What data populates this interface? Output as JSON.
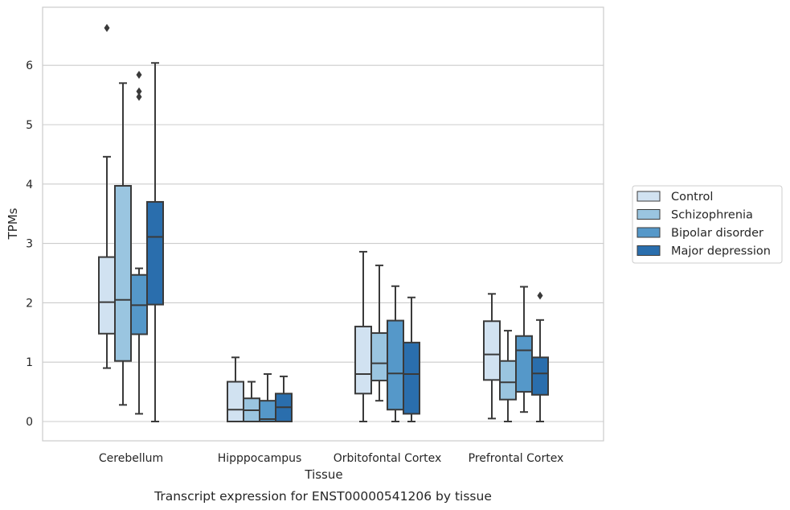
{
  "caption": "Transcript expression for ENST00000541206 by tissue",
  "chart_data": {
    "type": "box",
    "xlabel": "Tissue",
    "ylabel": "TPMs",
    "ylim": [
      -0.32,
      6.98
    ],
    "yticks": [
      0,
      1,
      2,
      3,
      4,
      5,
      6
    ],
    "grid": "horizontal",
    "legend_position": "right",
    "categories": [
      "Cerebellum",
      "Hipppocampus",
      "Orbitofontal Cortex",
      "Prefrontal Cortex"
    ],
    "series": [
      {
        "name": "Control",
        "color": "#d1e2f1",
        "boxes": [
          {
            "whislo": 0.9,
            "q1": 1.48,
            "med": 2.01,
            "q3": 2.77,
            "whishi": 4.46,
            "fliers": [
              6.63
            ]
          },
          {
            "whislo": 0.0,
            "q1": 0.0,
            "med": 0.2,
            "q3": 0.67,
            "whishi": 1.08,
            "fliers": []
          },
          {
            "whislo": 0.0,
            "q1": 0.47,
            "med": 0.8,
            "q3": 1.6,
            "whishi": 2.86,
            "fliers": []
          },
          {
            "whislo": 0.05,
            "q1": 0.7,
            "med": 1.13,
            "q3": 1.69,
            "whishi": 2.15,
            "fliers": []
          }
        ]
      },
      {
        "name": "Schizophrenia",
        "color": "#9ac5e0",
        "boxes": [
          {
            "whislo": 0.28,
            "q1": 1.02,
            "med": 2.05,
            "q3": 3.97,
            "whishi": 5.7,
            "fliers": []
          },
          {
            "whislo": 0.0,
            "q1": 0.0,
            "med": 0.19,
            "q3": 0.39,
            "whishi": 0.67,
            "fliers": []
          },
          {
            "whislo": 0.35,
            "q1": 0.69,
            "med": 0.98,
            "q3": 1.49,
            "whishi": 2.63,
            "fliers": []
          },
          {
            "whislo": 0.0,
            "q1": 0.37,
            "med": 0.66,
            "q3": 1.02,
            "whishi": 1.53,
            "fliers": []
          }
        ]
      },
      {
        "name": "Bipolar disorder",
        "color": "#5598c9",
        "boxes": [
          {
            "whislo": 0.13,
            "q1": 1.47,
            "med": 1.96,
            "q3": 2.47,
            "whishi": 2.58,
            "fliers": [
              5.47,
              5.56,
              5.84
            ]
          },
          {
            "whislo": 0.0,
            "q1": 0.0,
            "med": 0.04,
            "q3": 0.35,
            "whishi": 0.8,
            "fliers": []
          },
          {
            "whislo": 0.0,
            "q1": 0.2,
            "med": 0.81,
            "q3": 1.7,
            "whishi": 2.28,
            "fliers": []
          },
          {
            "whislo": 0.16,
            "q1": 0.5,
            "med": 1.2,
            "q3": 1.44,
            "whishi": 2.27,
            "fliers": []
          }
        ]
      },
      {
        "name": "Major depression",
        "color": "#2a6ead",
        "boxes": [
          {
            "whislo": 0.0,
            "q1": 1.97,
            "med": 3.11,
            "q3": 3.7,
            "whishi": 6.04,
            "fliers": []
          },
          {
            "whislo": 0.0,
            "q1": 0.0,
            "med": 0.24,
            "q3": 0.47,
            "whishi": 0.76,
            "fliers": []
          },
          {
            "whislo": 0.0,
            "q1": 0.13,
            "med": 0.8,
            "q3": 1.33,
            "whishi": 2.09,
            "fliers": []
          },
          {
            "whislo": 0.0,
            "q1": 0.45,
            "med": 0.81,
            "q3": 1.08,
            "whishi": 1.71,
            "fliers": [
              2.12
            ]
          }
        ]
      }
    ]
  }
}
